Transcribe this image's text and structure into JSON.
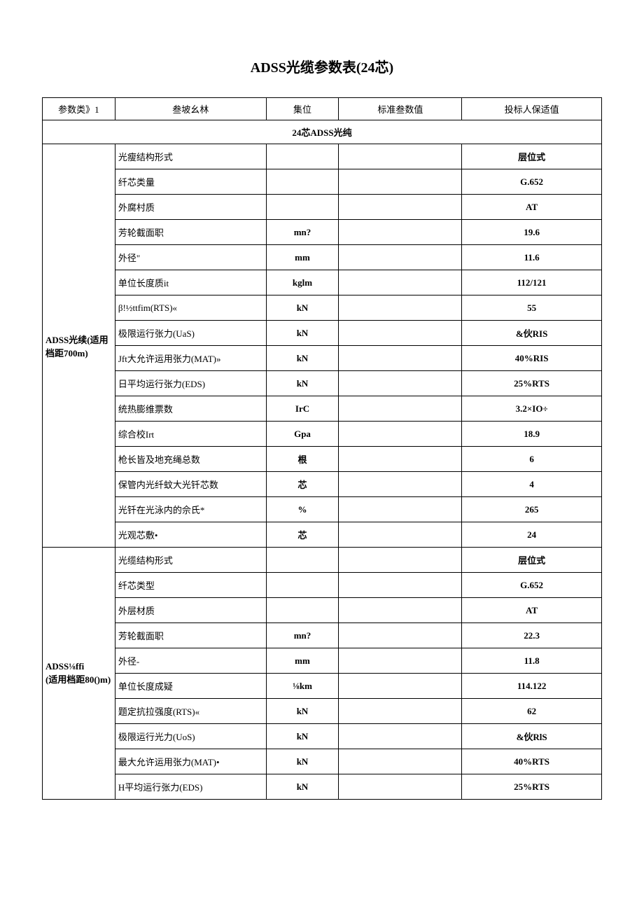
{
  "title": "ADSS光缆参数表(24芯)",
  "headers": {
    "col1": "参数类》1",
    "col2": "叁坡幺林",
    "col3": "集位",
    "col4": "标准叁数值",
    "col5": "投标人保适值"
  },
  "section_title": "24芯ADSS光纯",
  "group1": {
    "label": "ADSS光续(适用档距700m)",
    "rows": [
      {
        "name": "光瘦结构形式",
        "unit": "",
        "std": "",
        "value": "层位式"
      },
      {
        "name": "纤芯类量",
        "unit": "",
        "std": "",
        "value": "G.652"
      },
      {
        "name": "外腐村质",
        "unit": "",
        "std": "",
        "value": "AT"
      },
      {
        "name": "芳轮截面职",
        "unit": "mn?",
        "std": "",
        "value": "19.6"
      },
      {
        "name": "外径\"",
        "unit": "mm",
        "std": "",
        "value": "11.6"
      },
      {
        "name": "单位长度质it",
        "unit": "kglm",
        "std": "",
        "value": "112/121"
      },
      {
        "name": "β!½ttfim(RTS)«",
        "unit": "kN",
        "std": "",
        "value": "55"
      },
      {
        "name": "极限运行张力(UaS)",
        "unit": "kN",
        "std": "",
        "value": "&伙RIS"
      },
      {
        "name": "Jft大允许运用张力(MAT)»",
        "unit": "kN",
        "std": "",
        "value": "40%RIS"
      },
      {
        "name": "日平均运行张力(EDS)",
        "unit": "kN",
        "std": "",
        "value": "25%RTS"
      },
      {
        "name": "统热膨维票数",
        "unit": "IrC",
        "std": "",
        "value": "3.2×IO÷"
      },
      {
        "name": "综合校Irt",
        "unit": "Gpa",
        "std": "",
        "value": "18.9"
      },
      {
        "name": "枪长皆及地充绳总数",
        "unit": "根",
        "std": "",
        "value": "6"
      },
      {
        "name": "保管内光纤蚊大光钎芯数",
        "unit": "芯",
        "std": "",
        "value": "4"
      },
      {
        "name": "光钎在光泳内的佘氏*",
        "unit": "%",
        "std": "",
        "value": "265"
      },
      {
        "name": "光观芯敷•",
        "unit": "芯",
        "std": "",
        "value": "24"
      }
    ]
  },
  "group2": {
    "label": "ADSS⅛ffi\n(适用档距80()m)",
    "rows": [
      {
        "name": "光缆结构形式",
        "unit": "",
        "std": "",
        "value": "层位式"
      },
      {
        "name": "纤芯类型",
        "unit": "",
        "std": "",
        "value": "G.652"
      },
      {
        "name": "外层材质",
        "unit": "",
        "std": "",
        "value": "AT"
      },
      {
        "name": "芳轮截面职",
        "unit": "mn?",
        "std": "",
        "value": "22.3"
      },
      {
        "name": "外径-",
        "unit": "mm",
        "std": "",
        "value": "11.8"
      },
      {
        "name": "单位长度成疑",
        "unit": "⅛km",
        "std": "",
        "value": "114.122"
      },
      {
        "name": "题定抗拉强度(RTS)«",
        "unit": "kN",
        "std": "",
        "value": "62"
      },
      {
        "name": "极限运行光力(UoS)",
        "unit": "kN",
        "std": "",
        "value": "&伙RlS"
      },
      {
        "name": "最大允许运用张力(MAT)•",
        "unit": "kN",
        "std": "",
        "value": "40%RTS"
      },
      {
        "name": "H平均运行张力(EDS)",
        "unit": "kN",
        "std": "",
        "value": "25%RTS"
      }
    ]
  }
}
